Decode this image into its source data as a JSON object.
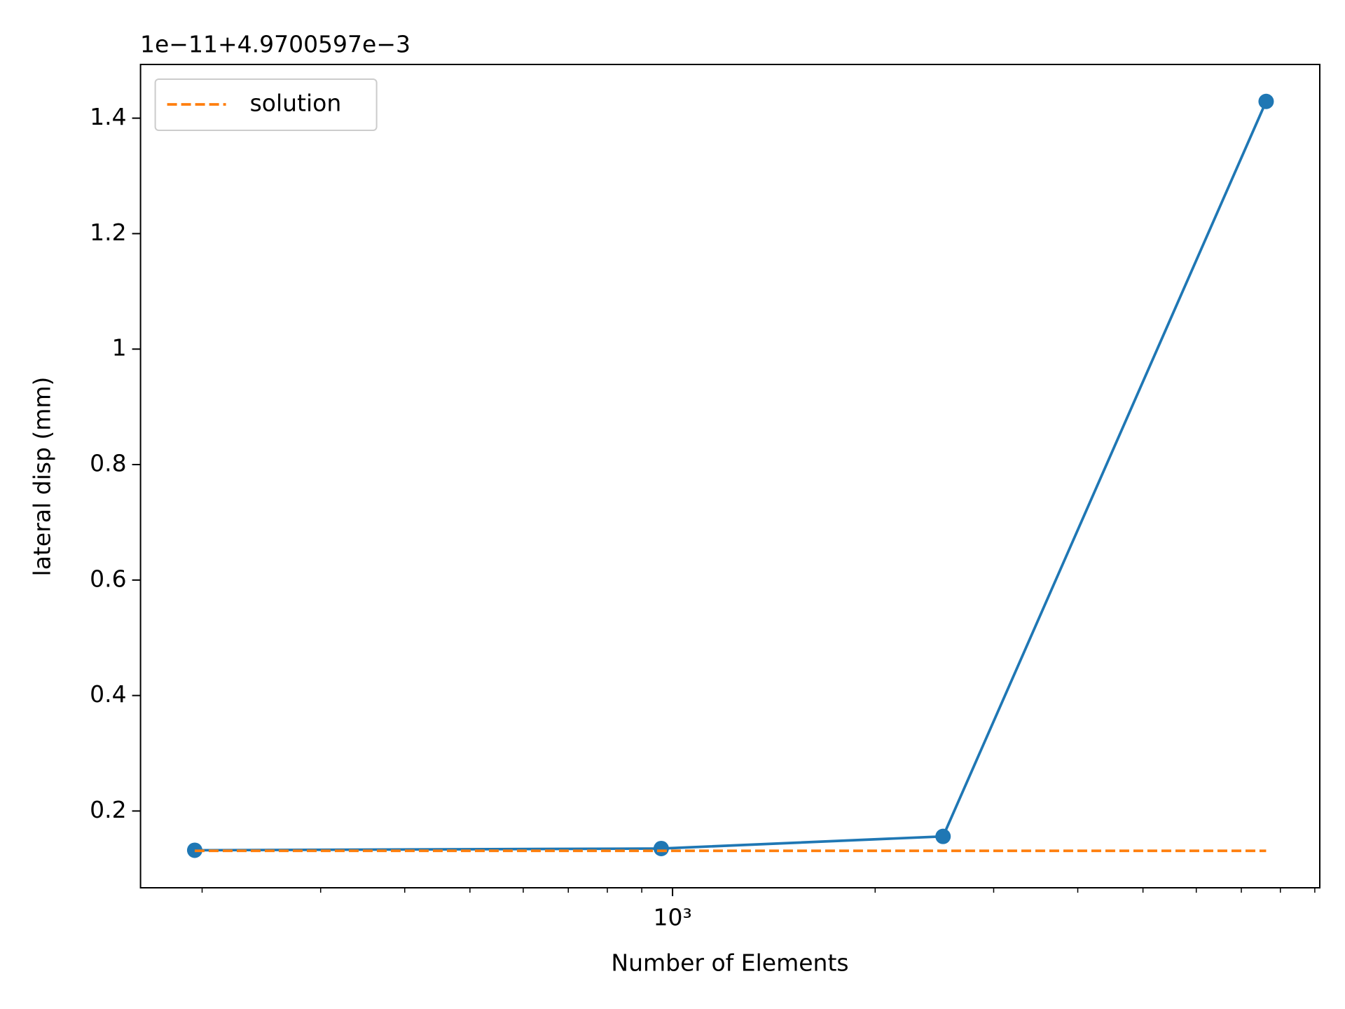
{
  "chart_data": {
    "type": "line",
    "offset_text": "1e−11+4.9700597e−3",
    "xlabel": "Number of Elements",
    "ylabel": "lateral disp (mm)",
    "x": [
      195,
      962,
      2523,
      7620
    ],
    "series": [
      {
        "color": "#1f77b4",
        "values": [
          0.132,
          0.135,
          0.156,
          1.429
        ],
        "marker": true
      },
      {
        "name": "solution",
        "color": "#ff7f0e",
        "values": [
          0.131,
          0.131,
          0.131,
          0.131
        ],
        "dashed": true
      }
    ],
    "xscale": "log",
    "xlim": [
      162,
      9155
    ],
    "xticks": [
      {
        "value": 1000,
        "label": "10³"
      }
    ],
    "xminorticks": [
      200,
      300,
      400,
      500,
      600,
      700,
      800,
      900,
      2000,
      3000,
      4000,
      5000,
      6000,
      7000,
      8000,
      9000
    ],
    "ylim": [
      0.067,
      1.493
    ],
    "yticks": [
      0.2,
      0.4,
      0.6,
      0.8,
      1.0,
      1.2,
      1.4
    ],
    "legend": "upper left"
  }
}
